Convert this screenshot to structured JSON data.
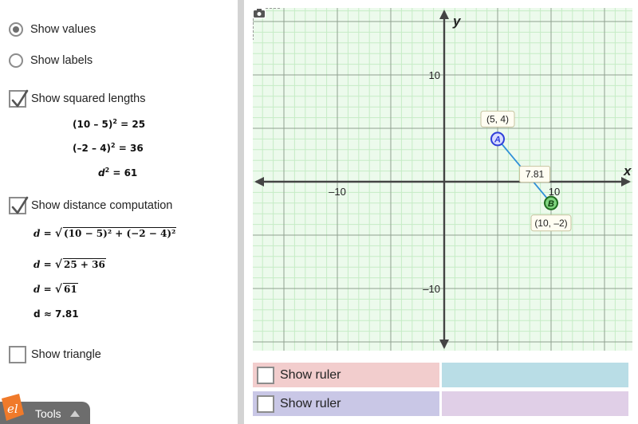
{
  "options": {
    "show_values": "Show values",
    "show_labels": "Show labels",
    "show_squared": "Show squared lengths",
    "show_distance": "Show distance computation",
    "show_triangle": "Show triangle"
  },
  "squared": {
    "line1_base": "(10 – 5)",
    "line1_exp": "2",
    "line1_result": " = 25",
    "line2_base": "(–2 – 4)",
    "line2_exp": "2",
    "line2_result": " = 36",
    "line3_var": "d",
    "line3_exp": "2",
    "line3_result": " = 61"
  },
  "distance": {
    "lhs": "d = ",
    "line1_radicand": "(10 − 5)² + (−2 − 4)²",
    "line2_radicand": "25 + 36",
    "line3_radicand": "61",
    "approx": "d ≈ 7.81"
  },
  "tools": {
    "label": "Tools"
  },
  "graph": {
    "x_axis_label": "x",
    "y_axis_label": "y",
    "tick_x_neg": "–10",
    "tick_x_pos": "10",
    "tick_y_pos": "10",
    "tick_y_neg": "–10",
    "point_a": {
      "name": "A",
      "x": 5,
      "y": 4,
      "label": "(5, 4)"
    },
    "point_b": {
      "name": "B",
      "x": 10,
      "y": -2,
      "label": "(10, –2)"
    },
    "distance_label": "7.81",
    "x_range": [
      -17,
      17
    ],
    "y_range": [
      -16,
      16
    ],
    "colors": {
      "grid": "#c6ecc6",
      "grid_major": "#8fa08f",
      "background": "#ecfaec",
      "segment": "#2e8fd8",
      "point_a": "#2f3fd9",
      "point_b": "#2d8a2d"
    }
  },
  "rulers": [
    {
      "label": "Show ruler",
      "color": "#f2cdcd",
      "color2": "#b9dde6"
    },
    {
      "label": "Show ruler",
      "color": "#c9c7e6",
      "color2": "#e0cfe7"
    }
  ],
  "icons": {
    "camera": "camera-icon",
    "logo": "explorelearning-logo-icon"
  }
}
